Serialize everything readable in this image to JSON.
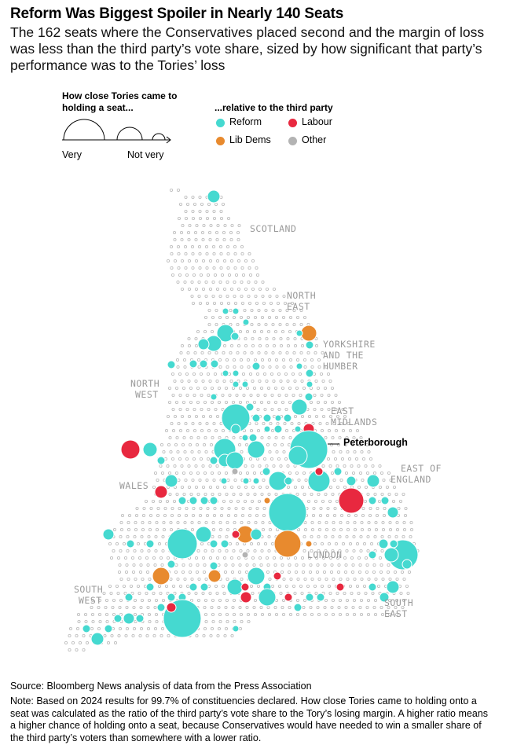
{
  "title": "Reform Was Biggest Spoiler in Nearly 140 Seats",
  "subtitle": "The 162 seats where the Conservatives placed second and the margin of loss was less than the third party’s vote share, sized by how significant that party’s performance was to the Tories’ loss",
  "legend": {
    "size_heading": "How close Tories came to holding a seat...",
    "size_low": "Very",
    "size_high": "Not very",
    "color_heading": "...relative to the third party",
    "items": [
      {
        "label": "Reform",
        "color": "#45d9d0"
      },
      {
        "label": "Labour",
        "color": "#e8283f"
      },
      {
        "label": "Lib Dems",
        "color": "#e88a2e"
      },
      {
        "label": "Other",
        "color": "#b3b3b3"
      }
    ]
  },
  "regions": [
    "SCOTLAND",
    "NORTH EAST",
    "YORKSHIRE AND THE HUMBER",
    "NORTH WEST",
    "EAST MIDLANDS",
    "EAST OF ENGLAND",
    "WALES",
    "LONDON",
    "SOUTH WEST",
    "SOUTH EAST"
  ],
  "callout": "Peterborough",
  "source": "Source: Bloomberg News analysis of data from the Press Association",
  "note": "Note: Based on 2024 results for 99.7% of constituencies declared. How close Tories came to holding onto a seat was calculated as the ratio of the third party’s vote share to the Tory’s losing margin. A higher ratio means a higher chance of holding onto a seat, because Conservatives would have needed to win a smaller share of the third party’s voters than somewhere with a lower ratio.",
  "chart_data": {
    "type": "scatter",
    "title": "Reform Was Biggest Spoiler in Nearly 140 Seats",
    "encoding": "hex map of constituencies; circle size = how close Tories came to holding the seat; color = third party",
    "seats_total": 162,
    "counts_by_third_party": {
      "Reform": 138,
      "Labour": 12,
      "Lib Dems": 9,
      "Other": 3
    },
    "highlighted_seat": {
      "name": "Peterborough",
      "third_party": "Reform"
    }
  }
}
